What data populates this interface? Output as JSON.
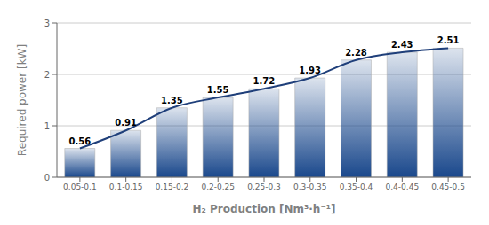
{
  "chart_data": {
    "type": "bar",
    "xlabel": "H₂ Production [Nm³·h⁻¹]",
    "ylabel": "Required power [kW]",
    "categories": [
      "0.05-0.1",
      "0.1-0.15",
      "0.15-0.2",
      "0.2-0.25",
      "0.25-0.3",
      "0.3-0.35",
      "0.35-0.4",
      "0.4-0.45",
      "0.45-0.5"
    ],
    "series": [
      {
        "type": "bar",
        "color": "#1a488c",
        "values": [
          0.56,
          0.91,
          1.35,
          1.55,
          1.72,
          1.93,
          2.28,
          2.43,
          2.51
        ],
        "data_labels": true
      },
      {
        "type": "line",
        "color": "#1f3f7a",
        "values": [
          0.56,
          0.91,
          1.35,
          1.55,
          1.72,
          1.93,
          2.28,
          2.43,
          2.51
        ]
      }
    ],
    "ylim": [
      0,
      3
    ],
    "yticks": [
      0,
      1,
      2,
      3
    ],
    "grid": true
  }
}
